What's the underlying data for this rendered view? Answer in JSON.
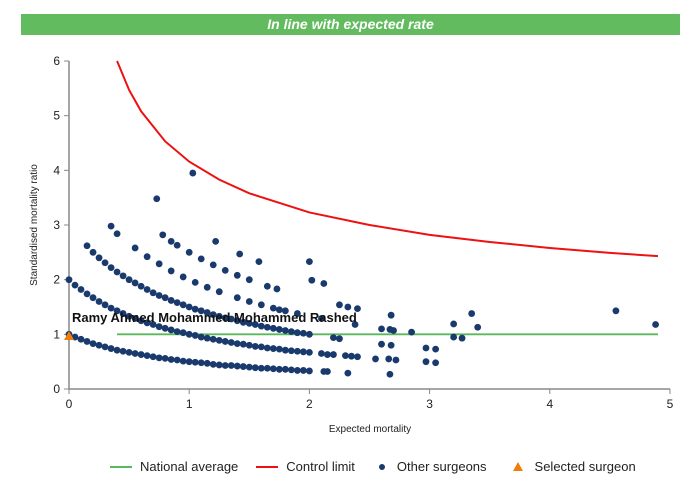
{
  "banner": {
    "text": "In line with expected rate",
    "color": "#62bb5e"
  },
  "chart_data": {
    "type": "scatter",
    "xlabel": "Expected mortality",
    "ylabel": "Standardised mortality ratio",
    "xlim": [
      0,
      5
    ],
    "ylim": [
      0,
      6
    ],
    "xticks": [
      "0",
      "1",
      "2",
      "3",
      "4",
      "5"
    ],
    "yticks": [
      "0",
      "1",
      "2",
      "3",
      "4",
      "5",
      "6"
    ],
    "grid": false,
    "legend_placement": "bottom",
    "annotation": "Ramy Ahmed Mohammed Mohammed Rashed",
    "series": [
      {
        "name": "National average",
        "kind": "line",
        "color": "#5cb85c",
        "points": [
          [
            0.4,
            1
          ],
          [
            4.9,
            1
          ]
        ]
      },
      {
        "name": "Control limit",
        "kind": "line",
        "color": "#ee1111",
        "points": [
          [
            0.4,
            6.0
          ],
          [
            0.5,
            5.47
          ],
          [
            0.6,
            5.08
          ],
          [
            0.8,
            4.53
          ],
          [
            1,
            4.16
          ],
          [
            1.25,
            3.83
          ],
          [
            1.5,
            3.58
          ],
          [
            2,
            3.23
          ],
          [
            2.5,
            3.0
          ],
          [
            3,
            2.82
          ],
          [
            3.5,
            2.69
          ],
          [
            4,
            2.58
          ],
          [
            4.5,
            2.49
          ],
          [
            4.9,
            2.43
          ]
        ]
      },
      {
        "name": "Other surgeons",
        "kind": "scatter",
        "color": "#1a3a6e",
        "points": [
          [
            0,
            1.0
          ],
          [
            0.05,
            0.95
          ],
          [
            0.1,
            0.91
          ],
          [
            0.15,
            0.87
          ],
          [
            0.2,
            0.83
          ],
          [
            0.25,
            0.8
          ],
          [
            0.3,
            0.77
          ],
          [
            0.35,
            0.74
          ],
          [
            0.4,
            0.71
          ],
          [
            0.45,
            0.69
          ],
          [
            0.5,
            0.67
          ],
          [
            0.55,
            0.65
          ],
          [
            0.6,
            0.63
          ],
          [
            0.65,
            0.61
          ],
          [
            0.7,
            0.59
          ],
          [
            0.75,
            0.57
          ],
          [
            0.8,
            0.56
          ],
          [
            0.85,
            0.54
          ],
          [
            0.9,
            0.53
          ],
          [
            0.95,
            0.51
          ],
          [
            1.0,
            0.5
          ],
          [
            1.05,
            0.49
          ],
          [
            1.1,
            0.48
          ],
          [
            1.15,
            0.47
          ],
          [
            1.2,
            0.45
          ],
          [
            1.25,
            0.44
          ],
          [
            1.3,
            0.43
          ],
          [
            1.35,
            0.43
          ],
          [
            1.4,
            0.42
          ],
          [
            1.45,
            0.41
          ],
          [
            1.5,
            0.4
          ],
          [
            1.55,
            0.39
          ],
          [
            1.6,
            0.38
          ],
          [
            1.65,
            0.38
          ],
          [
            1.7,
            0.37
          ],
          [
            1.75,
            0.36
          ],
          [
            1.8,
            0.36
          ],
          [
            1.85,
            0.35
          ],
          [
            1.9,
            0.34
          ],
          [
            1.95,
            0.34
          ],
          [
            2.0,
            0.33
          ],
          [
            2.12,
            0.32
          ],
          [
            2.15,
            0.32
          ],
          [
            0,
            2.0
          ],
          [
            0.05,
            1.9
          ],
          [
            0.1,
            1.82
          ],
          [
            0.15,
            1.74
          ],
          [
            0.2,
            1.67
          ],
          [
            0.25,
            1.6
          ],
          [
            0.3,
            1.54
          ],
          [
            0.35,
            1.48
          ],
          [
            0.4,
            1.43
          ],
          [
            0.45,
            1.38
          ],
          [
            0.5,
            1.33
          ],
          [
            0.55,
            1.29
          ],
          [
            0.6,
            1.25
          ],
          [
            0.65,
            1.21
          ],
          [
            0.7,
            1.18
          ],
          [
            0.75,
            1.14
          ],
          [
            0.8,
            1.11
          ],
          [
            0.85,
            1.08
          ],
          [
            0.9,
            1.05
          ],
          [
            0.95,
            1.03
          ],
          [
            1.0,
            1.0
          ],
          [
            1.05,
            0.98
          ],
          [
            1.1,
            0.95
          ],
          [
            1.15,
            0.93
          ],
          [
            1.2,
            0.91
          ],
          [
            1.25,
            0.89
          ],
          [
            1.3,
            0.87
          ],
          [
            1.35,
            0.85
          ],
          [
            1.4,
            0.83
          ],
          [
            1.45,
            0.82
          ],
          [
            1.5,
            0.8
          ],
          [
            1.55,
            0.78
          ],
          [
            1.6,
            0.77
          ],
          [
            1.65,
            0.75
          ],
          [
            1.7,
            0.74
          ],
          [
            1.75,
            0.73
          ],
          [
            1.8,
            0.71
          ],
          [
            1.85,
            0.7
          ],
          [
            1.9,
            0.69
          ],
          [
            1.95,
            0.68
          ],
          [
            2.0,
            0.67
          ],
          [
            2.1,
            0.65
          ],
          [
            2.15,
            0.63
          ],
          [
            2.2,
            0.63
          ],
          [
            2.3,
            0.61
          ],
          [
            2.35,
            0.6
          ],
          [
            2.4,
            0.59
          ],
          [
            0.25,
            2.4
          ],
          [
            0.3,
            2.31
          ],
          [
            0.35,
            2.22
          ],
          [
            0.4,
            2.14
          ],
          [
            0.45,
            2.07
          ],
          [
            0.5,
            2.0
          ],
          [
            0.55,
            1.94
          ],
          [
            0.6,
            1.88
          ],
          [
            0.65,
            1.82
          ],
          [
            0.7,
            1.76
          ],
          [
            0.75,
            1.71
          ],
          [
            0.8,
            1.67
          ],
          [
            0.85,
            1.62
          ],
          [
            0.9,
            1.58
          ],
          [
            0.95,
            1.54
          ],
          [
            1.0,
            1.5
          ],
          [
            1.05,
            1.46
          ],
          [
            1.1,
            1.43
          ],
          [
            1.15,
            1.4
          ],
          [
            1.2,
            1.36
          ],
          [
            1.25,
            1.33
          ],
          [
            1.3,
            1.3
          ],
          [
            1.35,
            1.28
          ],
          [
            1.4,
            1.25
          ],
          [
            1.45,
            1.22
          ],
          [
            1.5,
            1.2
          ],
          [
            1.55,
            1.18
          ],
          [
            1.6,
            1.15
          ],
          [
            1.65,
            1.13
          ],
          [
            1.7,
            1.11
          ],
          [
            1.75,
            1.09
          ],
          [
            1.8,
            1.07
          ],
          [
            1.85,
            1.05
          ],
          [
            1.9,
            1.03
          ],
          [
            1.95,
            1.02
          ],
          [
            2.0,
            1.0
          ],
          [
            2.2,
            0.94
          ],
          [
            2.25,
            0.92
          ],
          [
            0.55,
            2.58
          ],
          [
            0.65,
            2.42
          ],
          [
            0.75,
            2.29
          ],
          [
            0.85,
            2.16
          ],
          [
            0.95,
            2.05
          ],
          [
            1.05,
            1.95
          ],
          [
            1.15,
            1.86
          ],
          [
            1.25,
            1.78
          ],
          [
            1.4,
            1.67
          ],
          [
            1.5,
            1.6
          ],
          [
            1.6,
            1.54
          ],
          [
            1.7,
            1.48
          ],
          [
            1.75,
            1.45
          ],
          [
            1.8,
            1.43
          ],
          [
            1.9,
            1.38
          ],
          [
            2.1,
            1.29
          ],
          [
            0.85,
            2.7
          ],
          [
            0.9,
            2.63
          ],
          [
            1.0,
            2.5
          ],
          [
            1.1,
            2.38
          ],
          [
            1.2,
            2.27
          ],
          [
            1.3,
            2.17
          ],
          [
            1.4,
            2.08
          ],
          [
            1.5,
            2.0
          ],
          [
            0.15,
            2.62
          ],
          [
            0.2,
            2.5
          ],
          [
            0.35,
            2.98
          ],
          [
            0.4,
            2.84
          ],
          [
            0.73,
            3.48
          ],
          [
            1.03,
            3.95
          ],
          [
            0.78,
            2.82
          ],
          [
            1.22,
            2.7
          ],
          [
            1.42,
            2.47
          ],
          [
            1.58,
            2.33
          ],
          [
            2.0,
            2.33
          ],
          [
            2.02,
            1.99
          ],
          [
            2.12,
            1.93
          ],
          [
            1.65,
            1.88
          ],
          [
            1.73,
            1.83
          ],
          [
            2.25,
            1.54
          ],
          [
            2.32,
            1.5
          ],
          [
            2.4,
            1.47
          ],
          [
            2.38,
            1.18
          ],
          [
            2.6,
            1.1
          ],
          [
            2.67,
            1.09
          ],
          [
            2.68,
            1.35
          ],
          [
            2.7,
            1.07
          ],
          [
            2.85,
            1.04
          ],
          [
            2.6,
            0.82
          ],
          [
            2.68,
            0.8
          ],
          [
            2.66,
            0.55
          ],
          [
            2.72,
            0.53
          ],
          [
            2.67,
            0.27
          ],
          [
            2.55,
            0.55
          ],
          [
            2.32,
            0.29
          ],
          [
            2.97,
            0.75
          ],
          [
            3.05,
            0.73
          ],
          [
            2.97,
            0.5
          ],
          [
            3.05,
            0.48
          ],
          [
            3.2,
            1.19
          ],
          [
            3.2,
            0.95
          ],
          [
            3.27,
            0.93
          ],
          [
            3.35,
            1.38
          ],
          [
            3.4,
            1.13
          ],
          [
            4.55,
            1.43
          ],
          [
            4.88,
            1.18
          ]
        ]
      },
      {
        "name": "Selected surgeon",
        "kind": "scatter",
        "color": "#f07f09",
        "points": [
          [
            0,
            0.97
          ]
        ]
      }
    ]
  }
}
